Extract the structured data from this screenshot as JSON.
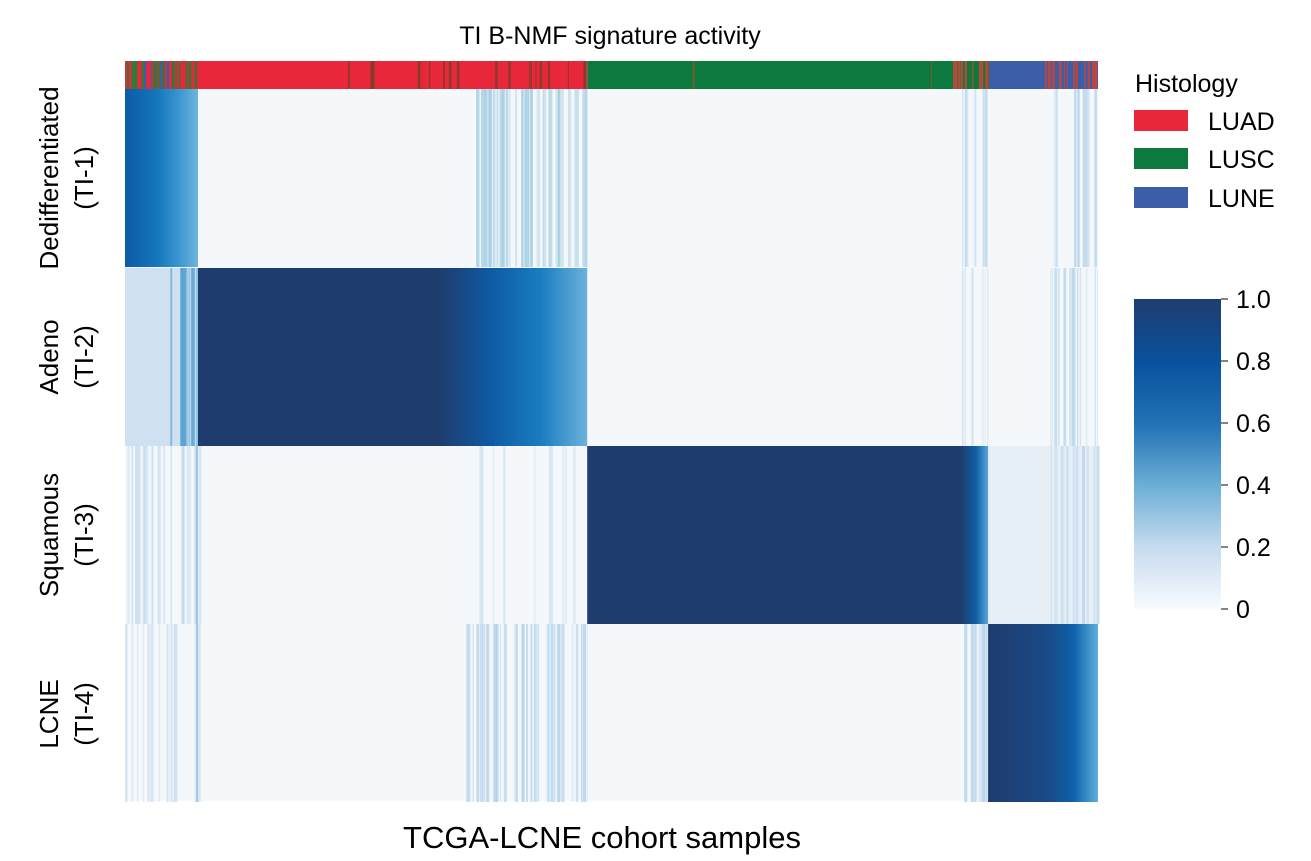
{
  "chart_data": {
    "type": "heatmap",
    "title": "TI B-NMF signature activity",
    "xlabel": "TCGA-LCNE cohort samples",
    "rows": [
      {
        "label_line1": "Dedifferentiated",
        "label_line2": "(TI-1)"
      },
      {
        "label_line1": "Adeno",
        "label_line2": "(TI-2)"
      },
      {
        "label_line1": "Squamous",
        "label_line2": "(TI-3)"
      },
      {
        "label_line1": "LCNE",
        "label_line2": "(TI-4)"
      }
    ],
    "histology_groups": [
      {
        "name": "LUAD",
        "sample_fraction_start": 0.0,
        "sample_fraction_end": 0.475
      },
      {
        "name": "LUSC",
        "sample_fraction_start": 0.475,
        "sample_fraction_end": 0.887
      },
      {
        "name": "LUNE",
        "sample_fraction_start": 0.887,
        "sample_fraction_end": 1.0
      }
    ],
    "activity_blocks": [
      {
        "row": 0,
        "sample_fraction_start": 0.0,
        "sample_fraction_end": 0.075,
        "activity_start": 0.85,
        "activity_end": 0.55
      },
      {
        "row": 1,
        "sample_fraction_start": 0.075,
        "sample_fraction_end": 0.475,
        "activity_start": 1.0,
        "activity_end": 0.5
      },
      {
        "row": 2,
        "sample_fraction_start": 0.475,
        "sample_fraction_end": 0.887,
        "activity_start": 1.0,
        "activity_end": 0.7
      },
      {
        "row": 3,
        "sample_fraction_start": 0.887,
        "sample_fraction_end": 1.0,
        "activity_start": 1.0,
        "activity_end": 0.5
      }
    ],
    "legend": {
      "title": "Histology",
      "entries": [
        {
          "name": "LUAD",
          "color": "#e8283a"
        },
        {
          "name": "LUSC",
          "color": "#0c7a3e"
        },
        {
          "name": "LUNE",
          "color": "#3b5ea8"
        }
      ],
      "placement": "right"
    },
    "colorbar": {
      "range": [
        0,
        1.0
      ],
      "ticks": [
        "1.0",
        "0.8",
        "0.6",
        "0.4",
        "0.2",
        "0"
      ],
      "tick_values": [
        1.0,
        0.8,
        0.6,
        0.4,
        0.2,
        0
      ],
      "colormap": "Blues",
      "stops": [
        "#f7fbff",
        "#c6dbef",
        "#6baed6",
        "#2171b5",
        "#08519c",
        "#1f3c6e"
      ]
    }
  }
}
